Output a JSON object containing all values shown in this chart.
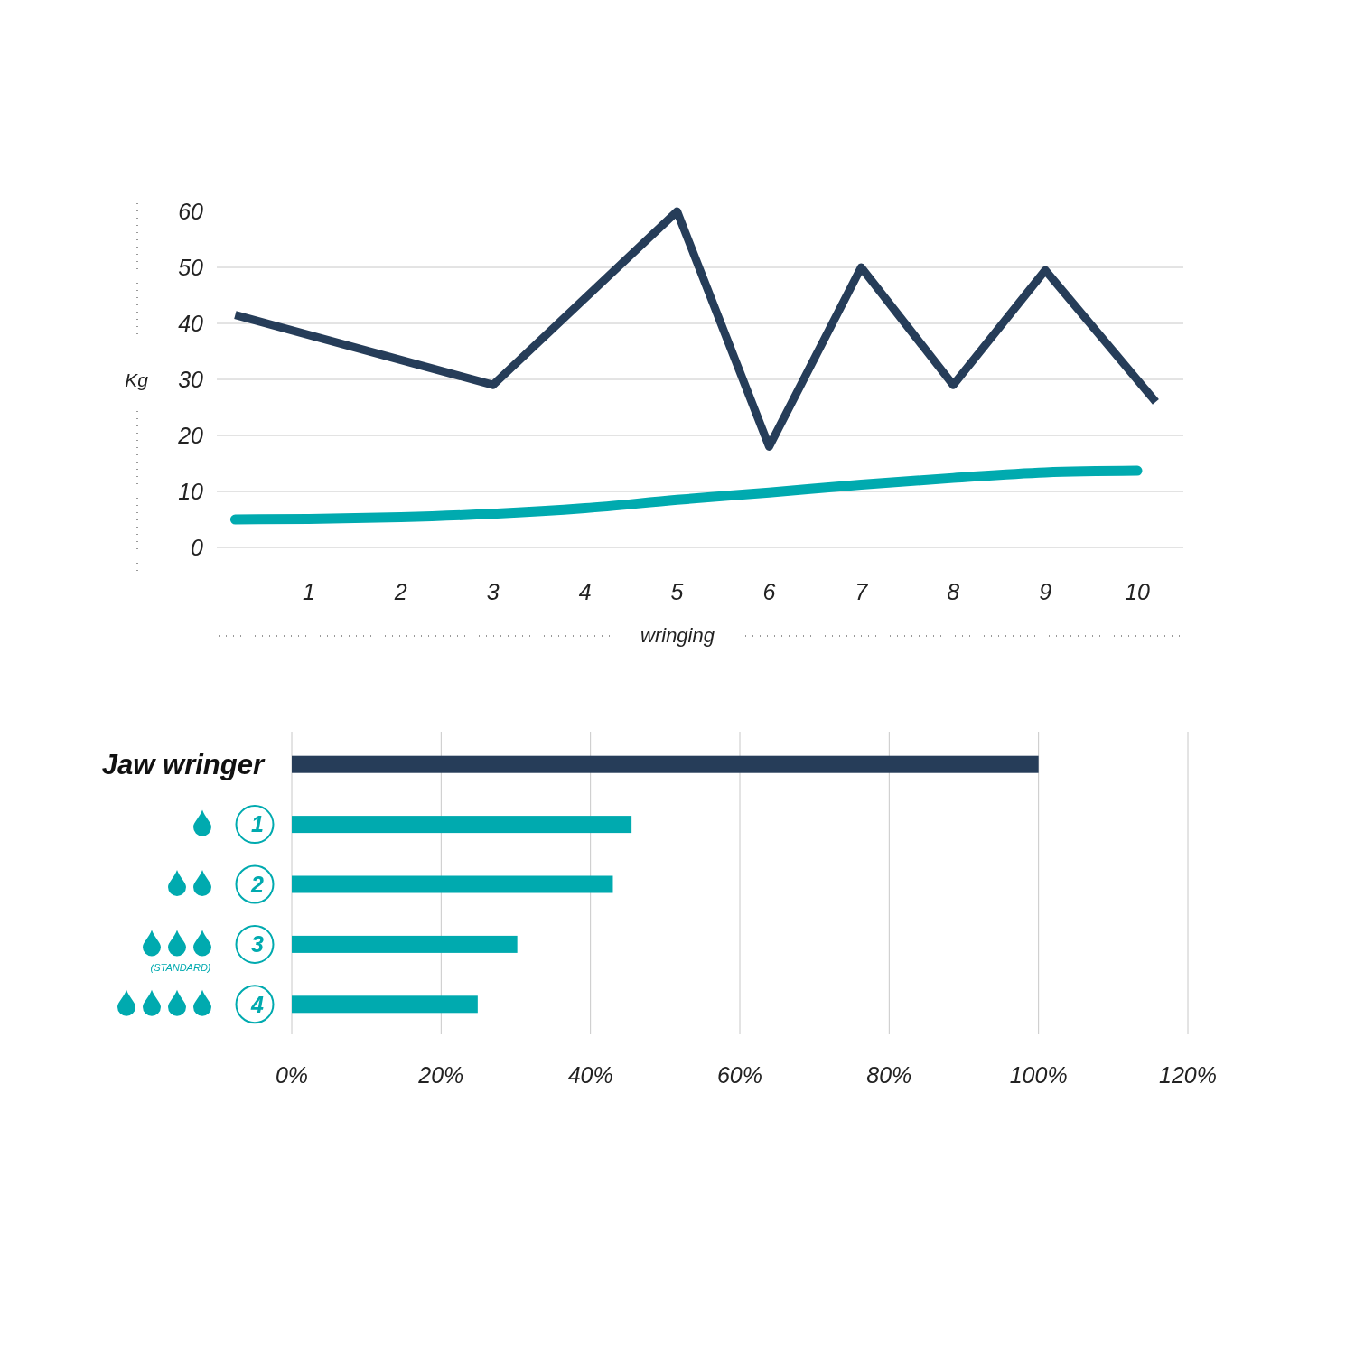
{
  "chart_data": [
    {
      "type": "line",
      "ylabel": "Kg",
      "xlabel": "wringing",
      "xlim": [
        0,
        10.5
      ],
      "xticks": [
        1,
        2,
        3,
        4,
        5,
        6,
        7,
        8,
        9,
        10
      ],
      "ylim": [
        0,
        60
      ],
      "yticks": [
        0,
        10,
        20,
        30,
        40,
        50,
        60
      ],
      "grid": "y",
      "marker": "none",
      "line_style": "solid",
      "series": [
        {
          "color": "#263d59",
          "x": [
            0.2,
            3,
            5,
            6,
            7,
            8,
            9,
            10.2
          ],
          "values": [
            41.5,
            29,
            60,
            18,
            50,
            29,
            49.5,
            26
          ]
        },
        {
          "color": "#00aaaf",
          "x": [
            0.2,
            1,
            2,
            3,
            4,
            5,
            6,
            7,
            8,
            9,
            10
          ],
          "values": [
            5,
            5.1,
            5.4,
            6,
            7,
            8.5,
            9.8,
            11.2,
            12.4,
            13.4,
            13.7
          ]
        }
      ]
    },
    {
      "type": "bar",
      "orientation": "horizontal",
      "categories": [
        "Jaw wringer",
        "1",
        "2",
        "3",
        "4"
      ],
      "values": [
        100,
        45.5,
        43,
        30.2,
        24.9
      ],
      "colors": [
        "#263d59",
        "#00aaaf",
        "#00aaaf",
        "#00aaaf",
        "#00aaaf"
      ],
      "xlim": [
        0,
        120
      ],
      "xticks": [
        {
          "value": 0,
          "label": "0%"
        },
        {
          "value": 20,
          "label": "20%"
        },
        {
          "value": 40,
          "label": "40%"
        },
        {
          "value": 60,
          "label": "60%"
        },
        {
          "value": 80,
          "label": "80%"
        },
        {
          "value": 100,
          "label": "100%"
        },
        {
          "value": 120,
          "label": "120%"
        }
      ],
      "grid": "x",
      "annotations": [
        "(STANDARD)"
      ]
    }
  ]
}
